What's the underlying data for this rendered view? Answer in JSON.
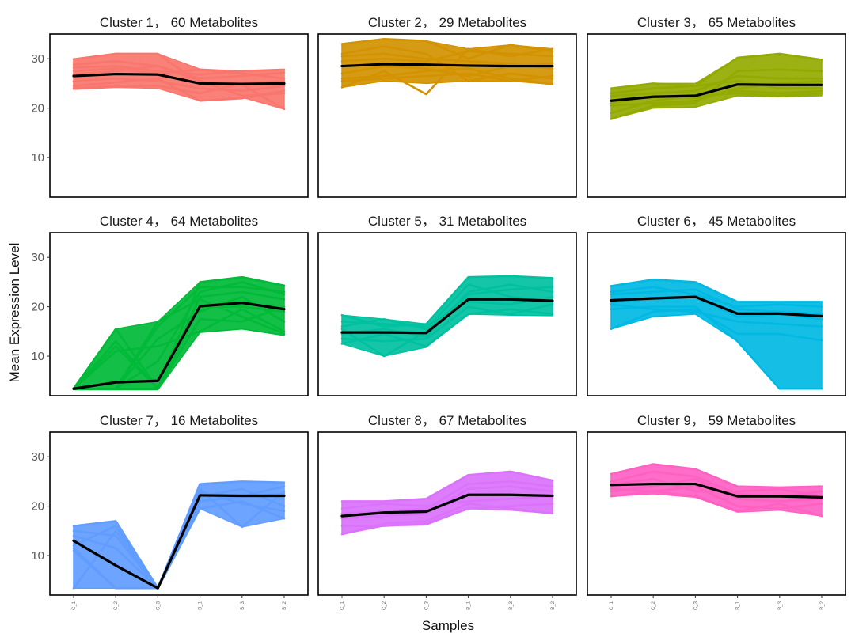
{
  "chart_data": {
    "type": "line",
    "layout": "3x3 facets",
    "xlabel": "Samples",
    "ylabel": "Mean Expression Level",
    "x": [
      "C_1",
      "C_2",
      "C_3",
      "B_1",
      "B_3",
      "B_2"
    ],
    "ylim": [
      2,
      35
    ],
    "yticks": [
      10,
      20,
      30
    ],
    "grid": false,
    "panels": [
      {
        "title": "Cluster 1， 60 Metabolites",
        "color": "#F8766D",
        "mean": [
          26.5,
          26.9,
          26.8,
          25.0,
          24.9,
          25.0
        ],
        "range_low": [
          23.8,
          24.2,
          24.0,
          21.5,
          22.2,
          19.8
        ],
        "range_high": [
          29.9,
          31.0,
          31.0,
          27.9,
          27.5,
          27.8
        ],
        "lines": [
          [
            29.9,
            31.0,
            31.0,
            25.0,
            24.8,
            19.8
          ],
          [
            28.8,
            29.5,
            28.5,
            26.0,
            26.5,
            27.2
          ],
          [
            24.5,
            25.2,
            26.0,
            21.5,
            22.0,
            23.5
          ],
          [
            27.5,
            28.0,
            27.0,
            27.8,
            27.0,
            26.0
          ],
          [
            25.5,
            26.0,
            25.5,
            24.0,
            23.5,
            24.5
          ],
          [
            26.8,
            27.5,
            28.5,
            25.5,
            22.5,
            23.0
          ],
          [
            24.0,
            24.5,
            24.5,
            23.0,
            25.0,
            25.5
          ],
          [
            28.2,
            28.5,
            27.5,
            26.8,
            27.5,
            27.8
          ]
        ]
      },
      {
        "title": "Cluster 2， 29 Metabolites",
        "color": "#D39200",
        "mean": [
          28.5,
          28.9,
          28.8,
          28.6,
          28.5,
          28.5
        ],
        "range_low": [
          24.2,
          25.5,
          25.0,
          25.5,
          25.5,
          24.8
        ],
        "range_high": [
          33.0,
          34.0,
          33.6,
          32.0,
          32.8,
          32.0
        ],
        "lines": [
          [
            33.0,
            34.0,
            33.6,
            30.0,
            32.8,
            31.5
          ],
          [
            24.2,
            27.5,
            22.8,
            32.0,
            30.5,
            32.0
          ],
          [
            31.0,
            32.5,
            31.0,
            25.5,
            27.0,
            26.0
          ],
          [
            26.0,
            26.5,
            27.5,
            28.0,
            26.0,
            24.8
          ],
          [
            29.5,
            30.0,
            29.5,
            31.5,
            31.0,
            30.5
          ],
          [
            27.0,
            28.5,
            28.0,
            26.5,
            28.5,
            29.0
          ],
          [
            30.5,
            31.0,
            30.0,
            29.5,
            29.0,
            28.0
          ],
          [
            25.5,
            26.0,
            26.5,
            27.0,
            25.5,
            26.5
          ]
        ]
      },
      {
        "title": "Cluster 3， 65 Metabolites",
        "color": "#93AA00",
        "mean": [
          21.5,
          22.3,
          22.5,
          24.8,
          24.7,
          24.7
        ],
        "range_low": [
          17.8,
          20.0,
          20.2,
          22.5,
          22.3,
          22.5
        ],
        "range_high": [
          24.0,
          25.0,
          25.0,
          30.2,
          31.0,
          29.8
        ],
        "lines": [
          [
            24.0,
            25.0,
            24.5,
            30.2,
            31.0,
            29.8
          ],
          [
            17.8,
            20.5,
            21.0,
            27.5,
            27.8,
            27.5
          ],
          [
            19.0,
            21.5,
            22.5,
            23.0,
            22.5,
            23.0
          ],
          [
            22.5,
            23.0,
            23.5,
            26.5,
            26.0,
            26.0
          ],
          [
            20.5,
            21.0,
            21.5,
            24.0,
            25.0,
            25.5
          ],
          [
            23.0,
            24.0,
            24.5,
            25.5,
            24.0,
            24.0
          ],
          [
            21.0,
            22.5,
            22.0,
            23.5,
            23.0,
            23.5
          ]
        ]
      },
      {
        "title": "Cluster 4， 64 Metabolites",
        "color": "#00BA38",
        "mean": [
          3.4,
          4.7,
          5.0,
          20.1,
          20.8,
          19.5
        ],
        "range_low": [
          3.2,
          3.2,
          3.2,
          14.8,
          15.5,
          14.2
        ],
        "range_high": [
          3.6,
          15.5,
          17.0,
          25.0,
          26.0,
          24.3
        ],
        "lines": [
          [
            3.4,
            15.5,
            3.4,
            25.0,
            26.0,
            24.3
          ],
          [
            3.4,
            13.0,
            3.4,
            22.0,
            23.0,
            21.5
          ],
          [
            3.4,
            3.4,
            16.0,
            24.0,
            24.0,
            23.0
          ],
          [
            3.4,
            11.0,
            12.0,
            15.0,
            19.5,
            15.0
          ],
          [
            3.4,
            3.4,
            17.0,
            21.5,
            18.0,
            14.5
          ],
          [
            3.4,
            3.4,
            13.5,
            19.0,
            22.0,
            17.0
          ],
          [
            3.4,
            12.0,
            3.4,
            17.5,
            17.0,
            20.0
          ],
          [
            3.4,
            3.4,
            9.0,
            23.0,
            25.0,
            22.5
          ],
          [
            3.4,
            3.4,
            3.4,
            20.0,
            20.0,
            19.0
          ]
        ]
      },
      {
        "title": "Cluster 5， 31 Metabolites",
        "color": "#00C19F",
        "mean": [
          14.8,
          14.8,
          14.7,
          21.5,
          21.5,
          21.2
        ],
        "range_low": [
          12.5,
          10.0,
          11.8,
          18.5,
          18.3,
          18.2
        ],
        "range_high": [
          18.3,
          17.5,
          16.5,
          26.0,
          26.2,
          25.8
        ],
        "lines": [
          [
            18.3,
            16.0,
            16.5,
            26.0,
            26.2,
            25.8
          ],
          [
            15.5,
            10.0,
            15.0,
            22.5,
            23.5,
            24.0
          ],
          [
            12.5,
            14.5,
            12.0,
            18.5,
            19.5,
            18.5
          ],
          [
            16.0,
            17.5,
            15.5,
            24.5,
            22.0,
            21.0
          ],
          [
            13.5,
            13.0,
            13.5,
            20.0,
            18.5,
            20.5
          ],
          [
            14.5,
            15.5,
            14.0,
            23.0,
            24.5,
            23.0
          ],
          [
            17.0,
            16.5,
            16.0,
            21.0,
            20.5,
            22.0
          ]
        ]
      },
      {
        "title": "Cluster 6， 45 Metabolites",
        "color": "#00B9E3",
        "mean": [
          21.3,
          21.7,
          22.0,
          18.6,
          18.6,
          18.1
        ],
        "range_low": [
          15.5,
          18.0,
          18.5,
          13.0,
          3.4,
          3.4
        ],
        "range_high": [
          24.2,
          25.5,
          25.0,
          21.0,
          21.0,
          21.0
        ],
        "lines": [
          [
            24.2,
            25.5,
            25.0,
            21.0,
            21.0,
            21.0
          ],
          [
            15.5,
            19.0,
            19.5,
            14.5,
            14.5,
            13.2
          ],
          [
            19.5,
            20.0,
            20.0,
            13.0,
            3.4,
            3.4
          ],
          [
            22.5,
            23.0,
            23.5,
            19.5,
            19.0,
            18.5
          ],
          [
            20.5,
            19.5,
            19.0,
            17.0,
            16.5,
            16.0
          ],
          [
            23.0,
            24.0,
            22.5,
            20.0,
            20.5,
            20.0
          ],
          [
            21.0,
            21.5,
            22.0,
            18.0,
            18.5,
            17.5
          ]
        ]
      },
      {
        "title": "Cluster 7， 16 Metabolites",
        "color": "#619CFF",
        "mean": [
          13.0,
          8.0,
          3.4,
          22.2,
          22.1,
          22.1
        ],
        "range_low": [
          3.4,
          3.4,
          3.4,
          19.5,
          15.8,
          17.5
        ],
        "range_high": [
          16.0,
          17.0,
          3.6,
          24.5,
          25.0,
          24.8
        ],
        "lines": [
          [
            16.0,
            17.0,
            3.4,
            24.5,
            25.0,
            24.8
          ],
          [
            3.4,
            15.0,
            3.4,
            23.5,
            15.8,
            23.0
          ],
          [
            11.0,
            3.4,
            3.4,
            19.5,
            21.0,
            17.5
          ],
          [
            14.0,
            11.5,
            3.4,
            22.0,
            23.5,
            20.0
          ],
          [
            12.0,
            16.0,
            3.4,
            21.0,
            22.0,
            24.0
          ],
          [
            15.0,
            14.0,
            3.4,
            23.0,
            20.5,
            19.0
          ],
          [
            11.5,
            3.4,
            3.4,
            22.5,
            22.0,
            22.5
          ]
        ]
      },
      {
        "title": "Cluster 8， 67 Metabolites",
        "color": "#DB72FB",
        "mean": [
          18.0,
          18.7,
          18.9,
          22.3,
          22.3,
          22.1
        ],
        "range_low": [
          14.3,
          16.0,
          16.2,
          19.5,
          19.2,
          18.5
        ],
        "range_high": [
          21.0,
          21.0,
          21.5,
          26.3,
          27.0,
          25.2
        ],
        "lines": [
          [
            21.0,
            21.0,
            21.5,
            26.3,
            27.0,
            25.2
          ],
          [
            14.3,
            16.5,
            17.0,
            20.5,
            19.5,
            18.5
          ],
          [
            17.5,
            18.0,
            18.5,
            23.5,
            24.0,
            23.0
          ],
          [
            19.5,
            20.5,
            20.0,
            21.0,
            21.5,
            22.0
          ],
          [
            16.0,
            16.0,
            16.5,
            19.5,
            20.0,
            20.5
          ],
          [
            18.5,
            19.0,
            19.5,
            24.5,
            25.0,
            24.0
          ]
        ]
      },
      {
        "title": "Cluster 9， 59 Metabolites",
        "color": "#FF61C3",
        "mean": [
          24.3,
          24.5,
          24.5,
          22.0,
          22.0,
          21.8
        ],
        "range_low": [
          22.0,
          22.5,
          21.8,
          18.8,
          19.2,
          18.0
        ],
        "range_high": [
          26.5,
          28.5,
          27.5,
          24.0,
          23.8,
          24.0
        ],
        "lines": [
          [
            26.5,
            28.5,
            27.5,
            24.0,
            23.8,
            24.0
          ],
          [
            22.0,
            23.0,
            22.0,
            19.0,
            20.5,
            18.0
          ],
          [
            25.0,
            27.0,
            26.0,
            22.5,
            22.0,
            23.0
          ],
          [
            23.5,
            23.0,
            24.0,
            20.0,
            19.5,
            20.5
          ],
          [
            24.5,
            25.5,
            23.0,
            23.0,
            23.5,
            22.0
          ],
          [
            23.0,
            24.0,
            25.5,
            21.5,
            21.0,
            21.5
          ]
        ]
      }
    ]
  }
}
